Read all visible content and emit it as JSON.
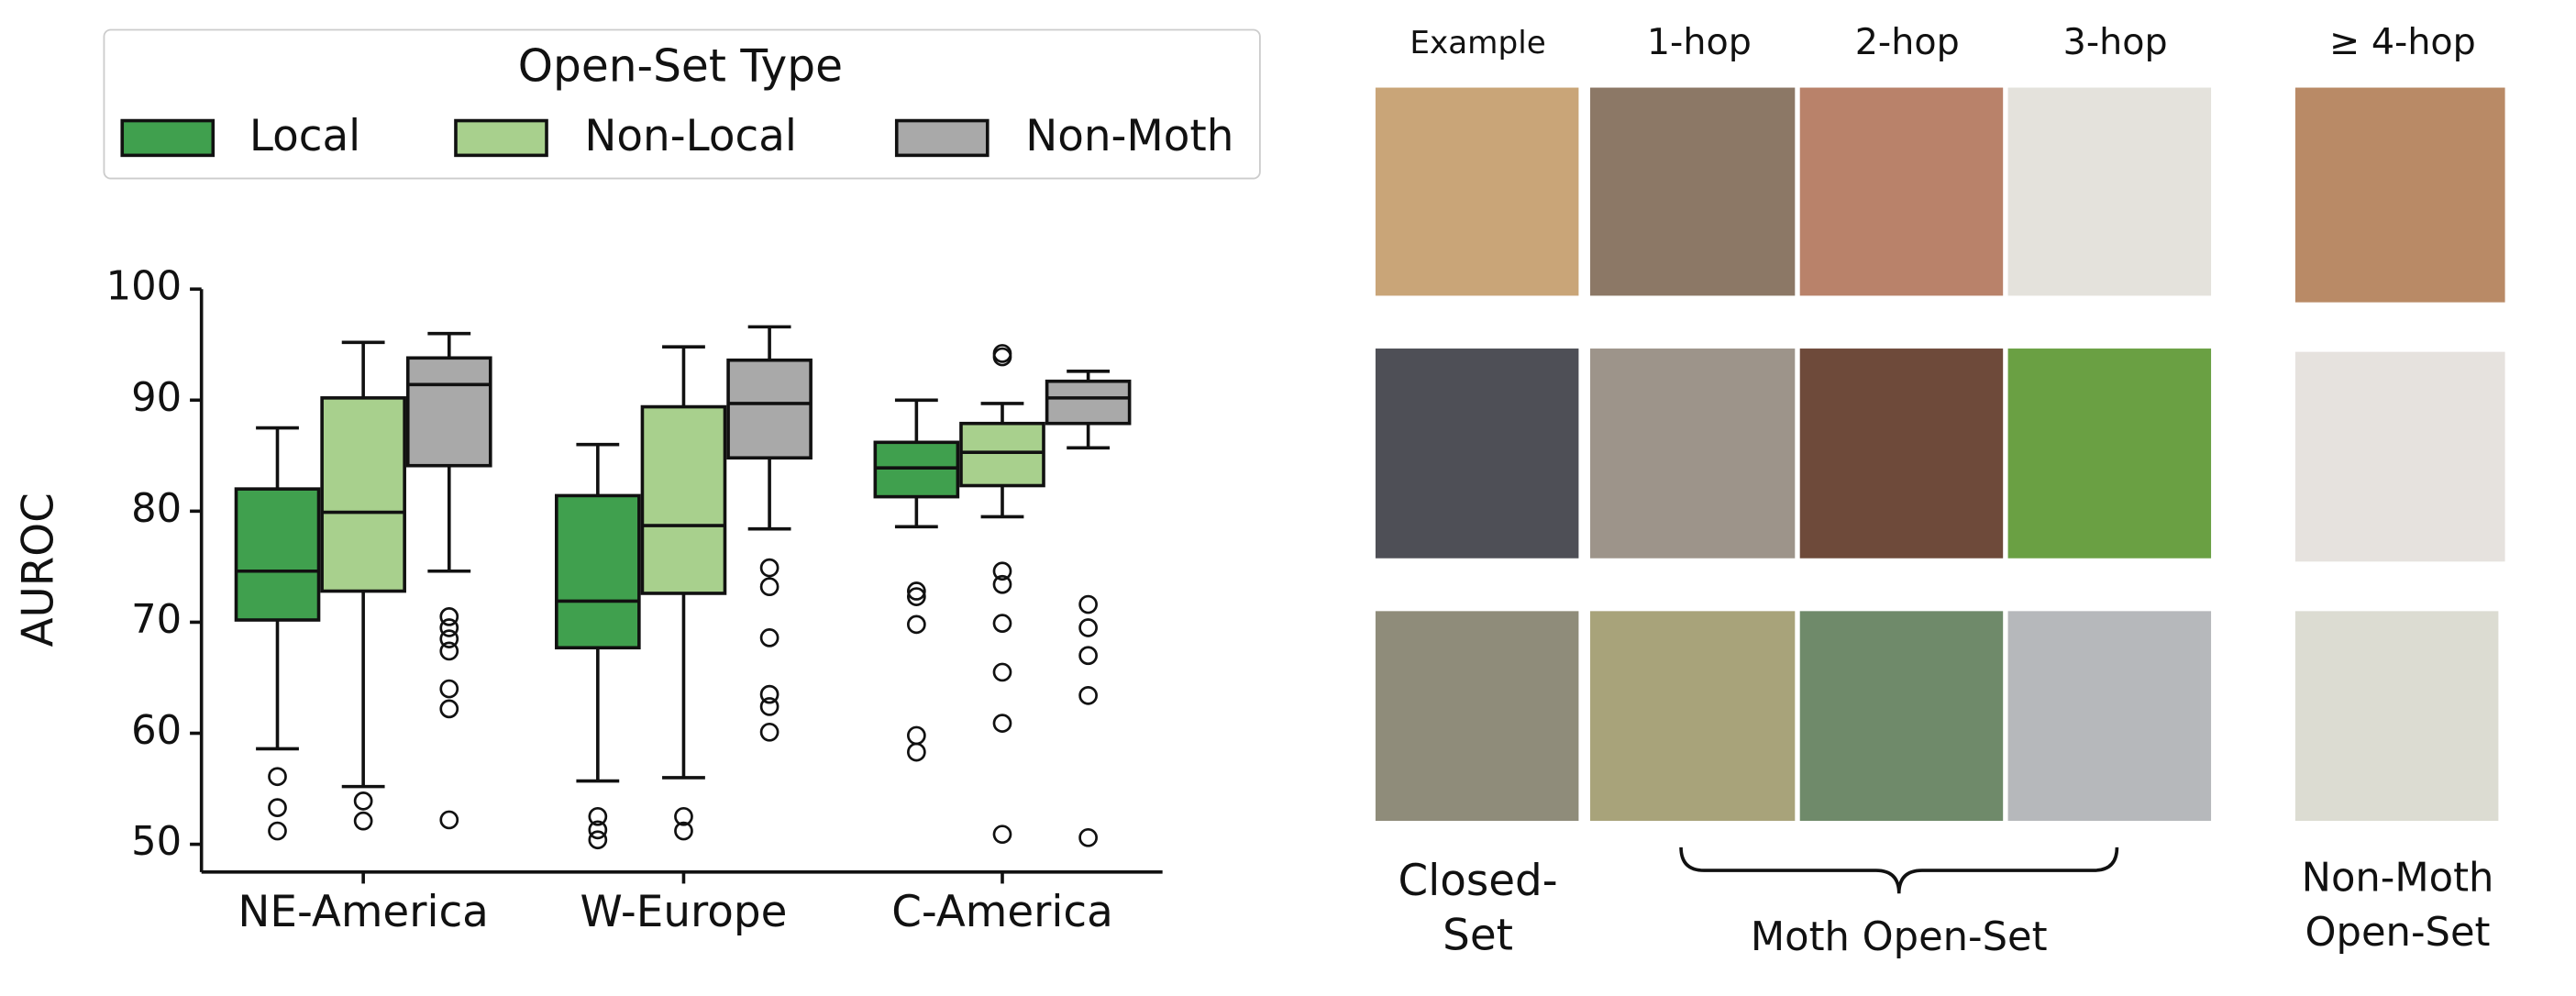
{
  "chart_data": {
    "type": "box",
    "legend_title": "Open-Set Type",
    "ylabel": "AUROC",
    "categories": [
      "NE-America",
      "W-Europe",
      "C-America"
    ],
    "ylim": [
      47.5,
      100
    ],
    "yticks": [
      50,
      60,
      70,
      80,
      90,
      100
    ],
    "legend_position": "top",
    "series": [
      {
        "name": "Local",
        "color": "#40a04e",
        "boxes": [
          {
            "whislo": 58.6,
            "q1": 70.2,
            "med": 74.6,
            "q3": 82.0,
            "whishi": 87.5,
            "fliers": [
              56.1,
              53.3,
              51.2
            ]
          },
          {
            "whislo": 55.7,
            "q1": 67.7,
            "med": 71.9,
            "q3": 81.4,
            "whishi": 86.0,
            "fliers": [
              52.5,
              51.3,
              50.4
            ]
          },
          {
            "whislo": 78.6,
            "q1": 81.3,
            "med": 83.9,
            "q3": 86.2,
            "whishi": 90.0,
            "fliers": [
              72.8,
              72.3,
              69.8,
              59.8,
              58.3
            ]
          }
        ]
      },
      {
        "name": "Non-Local",
        "color": "#a8d08d",
        "boxes": [
          {
            "whislo": 55.2,
            "q1": 72.8,
            "med": 79.9,
            "q3": 90.2,
            "whishi": 95.2,
            "fliers": [
              53.9,
              52.1
            ]
          },
          {
            "whislo": 56.0,
            "q1": 72.6,
            "med": 78.7,
            "q3": 89.4,
            "whishi": 94.8,
            "fliers": [
              52.5,
              51.2
            ]
          },
          {
            "whislo": 79.5,
            "q1": 82.3,
            "med": 85.3,
            "q3": 87.9,
            "whishi": 89.7,
            "fliers": [
              94.2,
              93.9,
              74.6,
              73.4,
              69.9,
              65.5,
              60.9,
              50.9
            ]
          }
        ]
      },
      {
        "name": "Non-Moth",
        "color": "#a9a9a9",
        "boxes": [
          {
            "whislo": 74.6,
            "q1": 84.1,
            "med": 91.4,
            "q3": 93.8,
            "whishi": 96.0,
            "fliers": [
              70.5,
              69.5,
              68.5,
              67.4,
              64.0,
              62.2,
              52.2
            ]
          },
          {
            "whislo": 78.4,
            "q1": 84.8,
            "med": 89.7,
            "q3": 93.6,
            "whishi": 96.6,
            "fliers": [
              74.9,
              73.2,
              68.6,
              63.5,
              62.4,
              60.1
            ]
          },
          {
            "whislo": 85.7,
            "q1": 87.9,
            "med": 90.2,
            "q3": 91.7,
            "whishi": 92.6,
            "fliers": [
              71.6,
              69.5,
              67.0,
              63.4,
              50.6
            ]
          }
        ]
      }
    ]
  },
  "image_grid": {
    "column_headers": [
      "Example",
      "1-hop",
      "2-hop",
      "3-hop",
      "≥ 4-hop"
    ],
    "closed_set_label": [
      "Closed-",
      "Set"
    ],
    "moth_open_set_label": "Moth Open-Set",
    "non_moth_label": [
      "Non-Moth",
      "Open-Set"
    ]
  }
}
